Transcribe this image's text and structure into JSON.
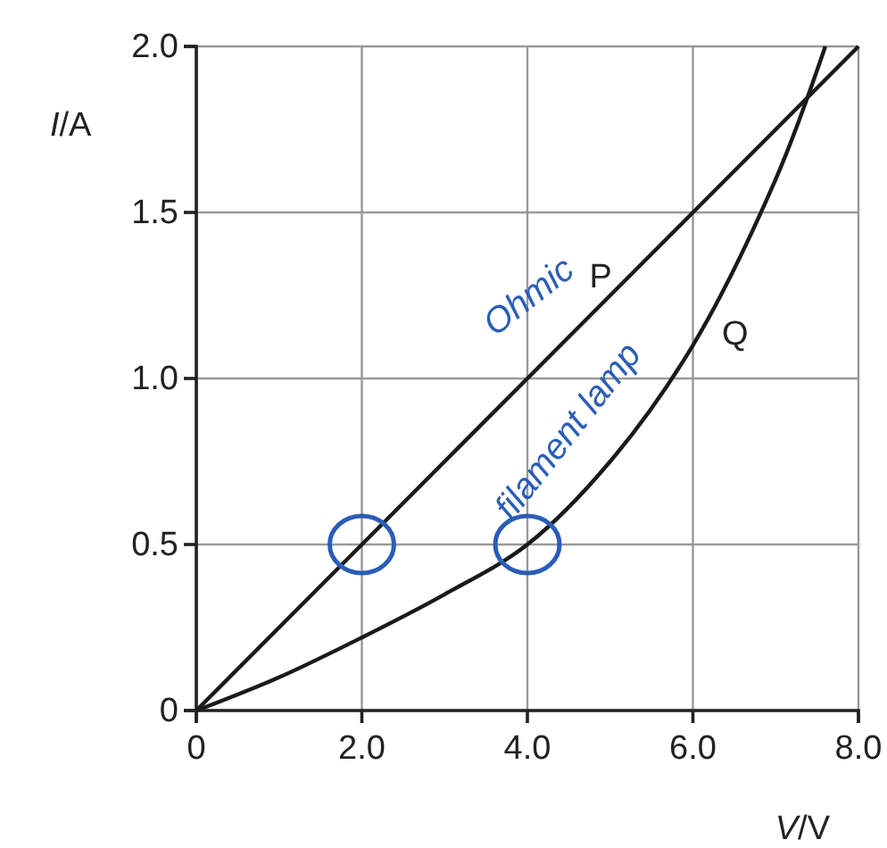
{
  "chart_data": {
    "type": "line",
    "xlabel": "V/V",
    "ylabel": "I/A",
    "xlim": [
      0,
      8
    ],
    "ylim": [
      0,
      2
    ],
    "xticks": [
      0,
      {
        "value": 2,
        "label": "2.0"
      },
      {
        "value": 4,
        "label": "4.0"
      },
      {
        "value": 6,
        "label": "6.0"
      },
      {
        "value": 8,
        "label": "8.0"
      }
    ],
    "yticks": [
      0,
      {
        "value": 0.5,
        "label": "0.5"
      },
      {
        "value": 1,
        "label": "1.0"
      },
      {
        "value": 1.5,
        "label": "1.5"
      },
      {
        "value": 2,
        "label": "2.0"
      }
    ],
    "grid": true,
    "marker": "none",
    "line_style": "solid",
    "series": [
      {
        "name": "P",
        "color": "#1a1a1a",
        "x": [
          0,
          2,
          4,
          6,
          8
        ],
        "values": [
          0,
          0.5,
          1,
          1.5,
          2
        ]
      },
      {
        "name": "Q",
        "color": "#1a1a1a",
        "x": [
          0,
          1,
          2,
          3,
          4,
          5,
          6,
          7,
          7.6
        ],
        "values": [
          0,
          0.1,
          0.22,
          0.35,
          0.5,
          0.75,
          1.1,
          1.6,
          2
        ]
      }
    ],
    "annotations": [
      "Ohmic",
      "filament lamp"
    ]
  }
}
